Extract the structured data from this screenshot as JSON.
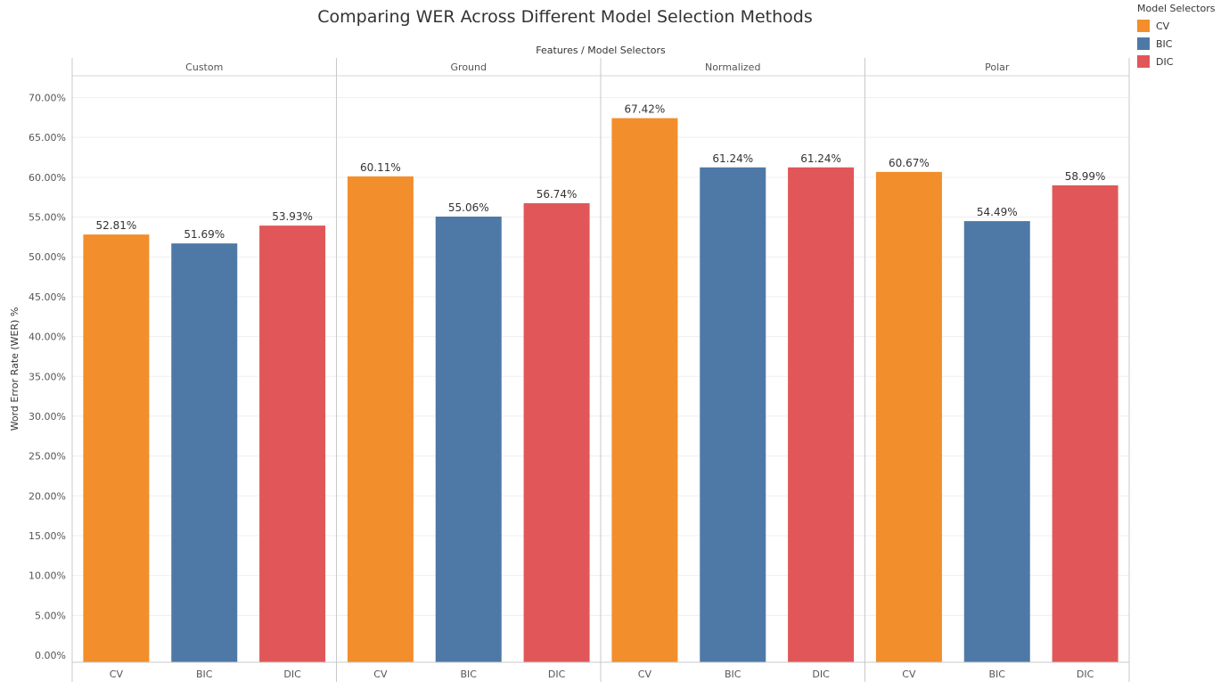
{
  "chart_data": {
    "type": "bar",
    "title": "Comparing WER Across Different Model Selection Methods",
    "column_header": "Features / Model Selectors",
    "ylabel": "Word Error Rate (WER) %",
    "ylim": [
      0,
      72
    ],
    "yticks": [
      "0.00%",
      "5.00%",
      "10.00%",
      "15.00%",
      "20.00%",
      "25.00%",
      "30.00%",
      "35.00%",
      "40.00%",
      "45.00%",
      "50.00%",
      "55.00%",
      "60.00%",
      "65.00%",
      "70.00%"
    ],
    "grid": true,
    "legend_title": "Model Selectors",
    "legend_position": "top-right",
    "categories": [
      "CV",
      "BIC",
      "DIC"
    ],
    "colors": {
      "CV": "#f28e2b",
      "BIC": "#4e79a7",
      "DIC": "#e15759"
    },
    "panels": [
      {
        "name": "Custom",
        "values": [
          52.81,
          51.69,
          53.93
        ],
        "labels": [
          "52.81%",
          "51.69%",
          "53.93%"
        ]
      },
      {
        "name": "Ground",
        "values": [
          60.11,
          55.06,
          56.74
        ],
        "labels": [
          "60.11%",
          "55.06%",
          "56.74%"
        ]
      },
      {
        "name": "Normalized",
        "values": [
          67.42,
          61.24,
          61.24
        ],
        "labels": [
          "67.42%",
          "61.24%",
          "61.24%"
        ]
      },
      {
        "name": "Polar",
        "values": [
          60.67,
          54.49,
          58.99
        ],
        "labels": [
          "60.67%",
          "54.49%",
          "58.99%"
        ]
      }
    ]
  }
}
